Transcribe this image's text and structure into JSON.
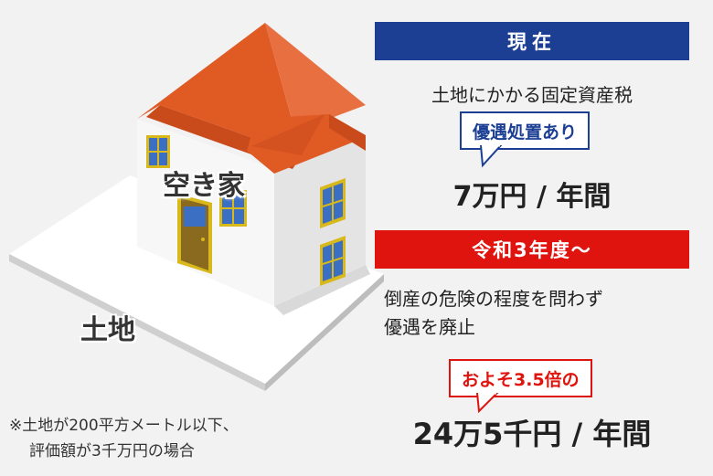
{
  "house_label": "空き家",
  "land_label": "土地",
  "note": {
    "line1": "※土地が200平方メートル以下、",
    "line2": "評価額が3千万円の場合"
  },
  "current": {
    "header": "現在",
    "description": "土地にかかる固定資産税",
    "badge": "優遇処置あり",
    "amount": "7万円 / 年間"
  },
  "future": {
    "header": "令和3年度～",
    "description_line1": "倒産の危険の程度を問わず",
    "description_line2": "優遇を廃止",
    "badge": "およそ3.5倍の",
    "amount": "24万5千円 / 年間"
  },
  "colors": {
    "blue": "#1c3f94",
    "red": "#e0140e",
    "roof": "#e05a24",
    "window": "#3b6fc4",
    "frame": "#d8b81a",
    "door": "#8a6a1e"
  }
}
